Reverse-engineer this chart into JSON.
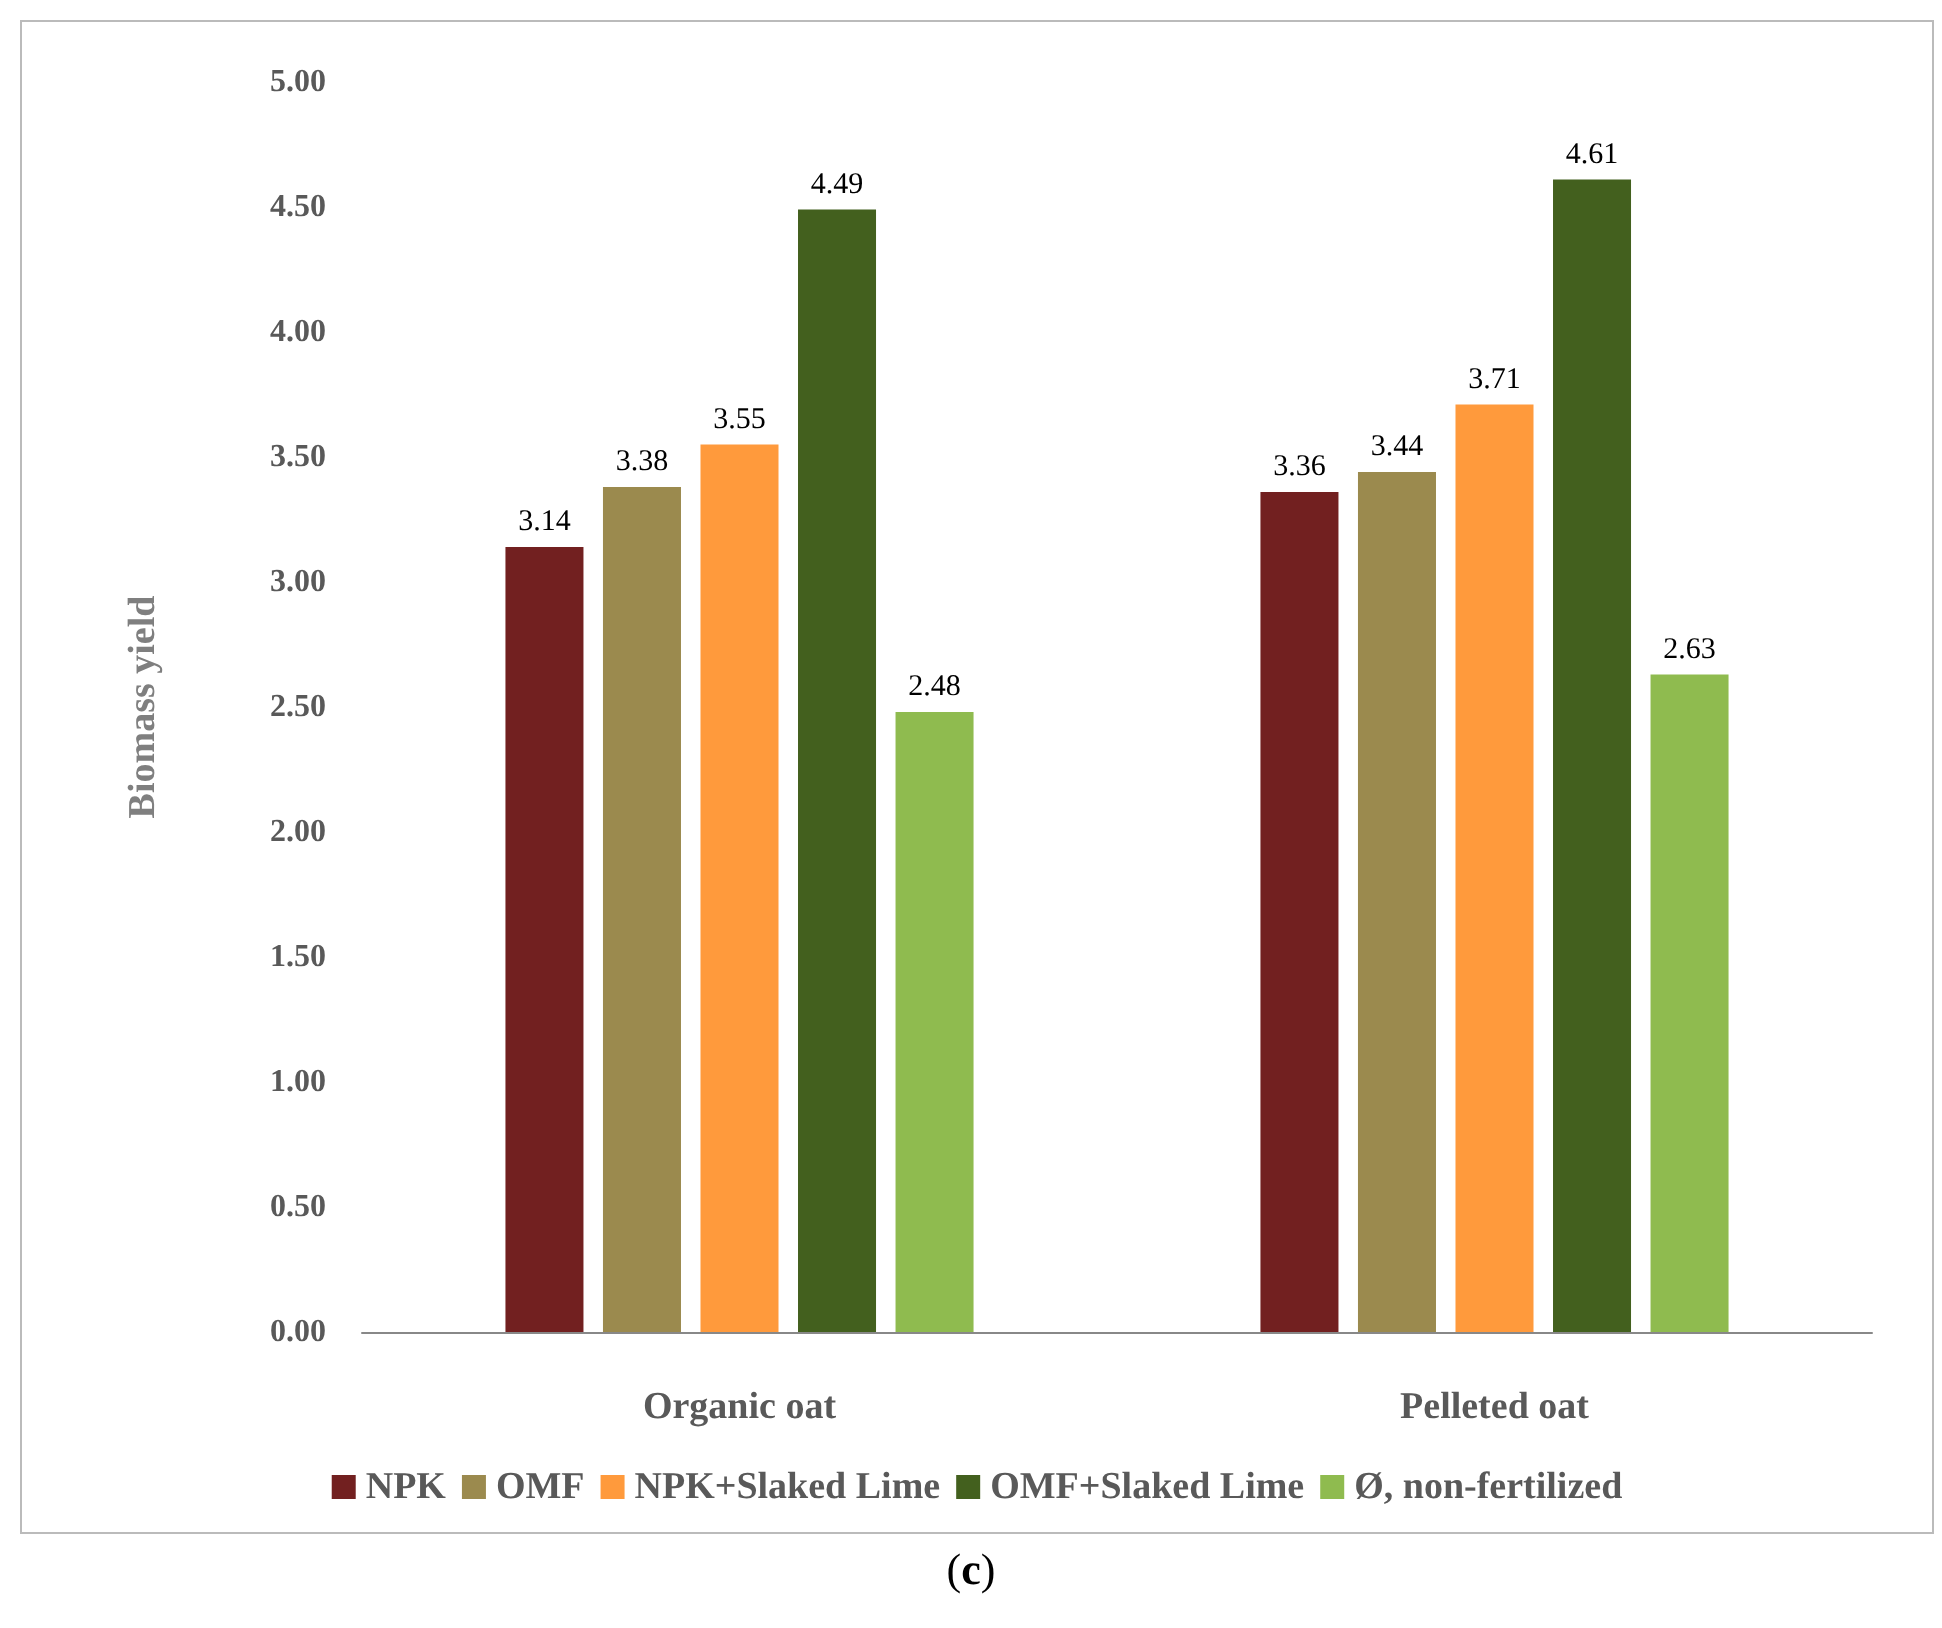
{
  "chart_data": {
    "type": "bar",
    "ylabel": "Biomass yield",
    "annotations": [
      "(c)"
    ],
    "categories": [
      "Organic oat",
      "Pelleted oat"
    ],
    "series": [
      {
        "name": "NPK",
        "color": "#722020",
        "values": [
          3.14,
          3.36
        ]
      },
      {
        "name": "OMF",
        "color": "#9b8a4e",
        "values": [
          3.38,
          3.44
        ]
      },
      {
        "name": "NPK+Slaked Lime",
        "color": "#ff9a3c",
        "values": [
          3.55,
          3.71
        ]
      },
      {
        "name": "OMF+Slaked Lime",
        "color": "#43601e",
        "values": [
          4.49,
          4.61
        ]
      },
      {
        "name": "Ø, non-fertilized",
        "color": "#8fbb4f",
        "values": [
          2.48,
          2.63
        ]
      }
    ],
    "ylim": [
      0,
      5
    ],
    "yticks": [
      {
        "value": 0,
        "label": "0.00"
      },
      {
        "value": 0.5,
        "label": "0.50"
      },
      {
        "value": 1,
        "label": "1.00"
      },
      {
        "value": 1.5,
        "label": "1.50"
      },
      {
        "value": 2,
        "label": "2.00"
      },
      {
        "value": 2.5,
        "label": "2.50"
      },
      {
        "value": 3,
        "label": "3.00"
      },
      {
        "value": 3.5,
        "label": "3.50"
      },
      {
        "value": 4,
        "label": "4.00"
      },
      {
        "value": 4.5,
        "label": "4.50"
      },
      {
        "value": 5,
        "label": "5.00"
      }
    ],
    "data_labels": true,
    "grid": false,
    "legend": "bottom"
  }
}
